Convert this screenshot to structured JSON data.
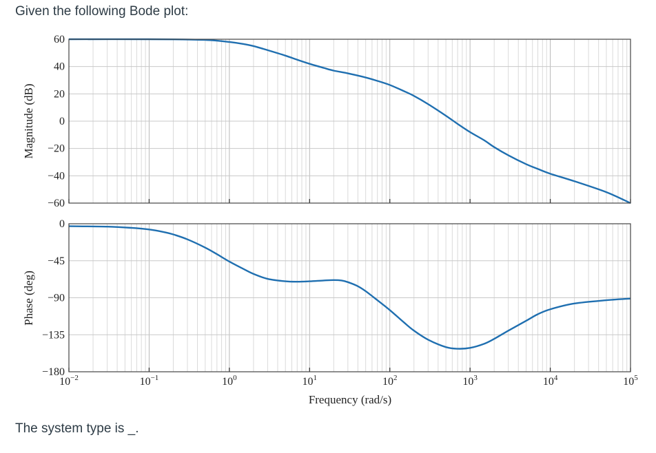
{
  "question": {
    "prompt": "Given the following Bode plot:",
    "footer": "The system type is _."
  },
  "chart_data": {
    "type": "line",
    "x_scale": "log",
    "xlabel": "Frequency (rad/s)",
    "xlim": [
      0.01,
      100000
    ],
    "x_ticks": [
      {
        "value": 0.01,
        "base": "10",
        "exp": "−2"
      },
      {
        "value": 0.1,
        "base": "10",
        "exp": "−1"
      },
      {
        "value": 1,
        "base": "10",
        "exp": "0"
      },
      {
        "value": 10,
        "base": "10",
        "exp": "1"
      },
      {
        "value": 100,
        "base": "10",
        "exp": "2"
      },
      {
        "value": 1000,
        "base": "10",
        "exp": "3"
      },
      {
        "value": 10000,
        "base": "10",
        "exp": "4"
      },
      {
        "value": 100000,
        "base": "10",
        "exp": "5"
      }
    ],
    "grid": true,
    "line_color": "#1f6fb0",
    "panels": [
      {
        "id": "magnitude",
        "ylabel": "Magnitude (dB)",
        "ylim": [
          -60,
          60
        ],
        "y_ticks": [
          {
            "value": 60,
            "label": "60"
          },
          {
            "value": 40,
            "label": "40"
          },
          {
            "value": 20,
            "label": "20"
          },
          {
            "value": 0,
            "label": "0"
          },
          {
            "value": -20,
            "label": "−20"
          },
          {
            "value": -40,
            "label": "−40"
          },
          {
            "value": -60,
            "label": "−60"
          }
        ],
        "series": [
          {
            "x": [
              0.01,
              0.1,
              0.3,
              0.6,
              1,
              1.5,
              2,
              3,
              5,
              7,
              10,
              15,
              20,
              30,
              50,
              70,
              100,
              150,
              200,
              300,
              500,
              700,
              1000,
              1500,
              2000,
              3000,
              5000,
              7000,
              10000,
              20000,
              50000,
              100000
            ],
            "y": [
              60,
              60,
              59.8,
              59.3,
              58,
              56.5,
              55,
              52,
              48,
              45,
              42,
              39,
              37,
              35,
              32,
              29.5,
              26.5,
              22,
              18.5,
              12.5,
              4,
              -2,
              -8,
              -14,
              -19,
              -25,
              -31.5,
              -35,
              -38.5,
              -44,
              -52,
              -60
            ]
          }
        ]
      },
      {
        "id": "phase",
        "ylabel": "Phase (deg)",
        "ylim": [
          -180,
          0
        ],
        "y_ticks": [
          {
            "value": 0,
            "label": "0"
          },
          {
            "value": -45,
            "label": "−45"
          },
          {
            "value": -90,
            "label": "−90"
          },
          {
            "value": -135,
            "label": "−135"
          },
          {
            "value": -180,
            "label": "−180"
          }
        ],
        "series": [
          {
            "x": [
              0.01,
              0.03,
              0.06,
              0.1,
              0.15,
              0.2,
              0.3,
              0.5,
              0.7,
              1,
              1.5,
              2,
              3,
              5,
              7,
              10,
              15,
              20,
              25,
              30,
              40,
              50,
              70,
              100,
              150,
              200,
              300,
              500,
              700,
              1000,
              1500,
              2000,
              3000,
              5000,
              7000,
              10000,
              20000,
              50000,
              100000
            ],
            "y": [
              -3,
              -3.5,
              -5,
              -7,
              -10,
              -13,
              -19,
              -29,
              -37,
              -46,
              -55,
              -61,
              -67,
              -70,
              -70.5,
              -70,
              -69,
              -68.5,
              -69,
              -71,
              -76,
              -82,
              -93,
              -105,
              -120,
              -130,
              -141,
              -150,
              -152,
              -151,
              -146,
              -140,
              -130,
              -118,
              -110,
              -104,
              -97,
              -93,
              -91
            ]
          }
        ]
      }
    ]
  }
}
